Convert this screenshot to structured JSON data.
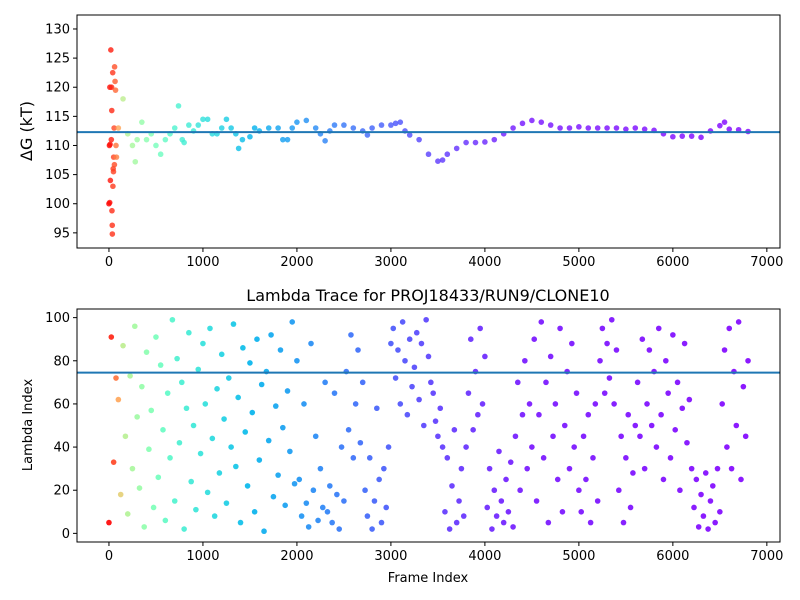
{
  "chart_data": [
    {
      "type": "scatter",
      "title": "",
      "xlabel": "",
      "ylabel": "ΔG (kT)",
      "xlim": [
        -340,
        7140
      ],
      "ylim": [
        92.4,
        132.4
      ],
      "xticks": [
        0,
        1000,
        2000,
        3000,
        4000,
        5000,
        6000,
        7000
      ],
      "yticks": [
        95,
        100,
        105,
        110,
        115,
        120,
        125,
        130
      ],
      "colormap": "rainbow (red early → purple late)",
      "hline": {
        "y": 112.3,
        "color": "#1f77b4"
      },
      "points": [
        [
          0,
          100
        ],
        [
          5,
          110
        ],
        [
          8,
          100.2
        ],
        [
          10,
          120
        ],
        [
          12,
          110.2
        ],
        [
          15,
          104
        ],
        [
          20,
          126.4
        ],
        [
          25,
          111
        ],
        [
          28,
          120
        ],
        [
          30,
          116
        ],
        [
          32,
          98.8
        ],
        [
          35,
          96.3
        ],
        [
          36,
          94.8
        ],
        [
          40,
          122.5
        ],
        [
          42,
          103
        ],
        [
          45,
          106
        ],
        [
          48,
          105.5
        ],
        [
          50,
          108
        ],
        [
          55,
          113
        ],
        [
          58,
          106.7
        ],
        [
          60,
          123.5
        ],
        [
          65,
          121
        ],
        [
          70,
          119.5
        ],
        [
          75,
          110
        ],
        [
          80,
          108
        ],
        [
          100,
          113
        ],
        [
          150,
          118
        ],
        [
          200,
          112
        ],
        [
          250,
          110
        ],
        [
          280,
          107.2
        ],
        [
          300,
          111
        ],
        [
          350,
          114
        ],
        [
          400,
          111
        ],
        [
          450,
          112
        ],
        [
          500,
          110
        ],
        [
          550,
          108.5
        ],
        [
          600,
          111
        ],
        [
          650,
          112
        ],
        [
          700,
          113
        ],
        [
          740,
          116.8
        ],
        [
          780,
          111
        ],
        [
          800,
          110.5
        ],
        [
          850,
          113.5
        ],
        [
          900,
          112.5
        ],
        [
          950,
          113.5
        ],
        [
          1000,
          114.5
        ],
        [
          1050,
          114.5
        ],
        [
          1100,
          112
        ],
        [
          1150,
          112
        ],
        [
          1200,
          113
        ],
        [
          1250,
          114.5
        ],
        [
          1300,
          113
        ],
        [
          1350,
          112
        ],
        [
          1380,
          109.5
        ],
        [
          1420,
          111
        ],
        [
          1500,
          111.5
        ],
        [
          1550,
          113
        ],
        [
          1600,
          112.5
        ],
        [
          1700,
          113
        ],
        [
          1800,
          113
        ],
        [
          1850,
          111
        ],
        [
          1900,
          111
        ],
        [
          1950,
          113
        ],
        [
          2000,
          114
        ],
        [
          2100,
          114.3
        ],
        [
          2200,
          113
        ],
        [
          2250,
          112
        ],
        [
          2300,
          110.8
        ],
        [
          2350,
          112.5
        ],
        [
          2400,
          113.5
        ],
        [
          2500,
          113.5
        ],
        [
          2600,
          113
        ],
        [
          2700,
          112.5
        ],
        [
          2750,
          111.8
        ],
        [
          2800,
          113
        ],
        [
          2900,
          113.5
        ],
        [
          3000,
          113.5
        ],
        [
          3050,
          113.8
        ],
        [
          3100,
          114
        ],
        [
          3150,
          112.5
        ],
        [
          3200,
          111.8
        ],
        [
          3300,
          111
        ],
        [
          3400,
          108.5
        ],
        [
          3500,
          107.3
        ],
        [
          3550,
          107.5
        ],
        [
          3600,
          108.5
        ],
        [
          3700,
          109.5
        ],
        [
          3800,
          110.5
        ],
        [
          3900,
          110.5
        ],
        [
          4000,
          110.6
        ],
        [
          4100,
          111
        ],
        [
          4200,
          112
        ],
        [
          4300,
          113
        ],
        [
          4400,
          113.8
        ],
        [
          4500,
          114.3
        ],
        [
          4600,
          114
        ],
        [
          4700,
          113.5
        ],
        [
          4800,
          113
        ],
        [
          4900,
          113
        ],
        [
          5000,
          113.2
        ],
        [
          5100,
          113
        ],
        [
          5200,
          113
        ],
        [
          5300,
          113
        ],
        [
          5400,
          113
        ],
        [
          5500,
          112.8
        ],
        [
          5600,
          113
        ],
        [
          5700,
          112.8
        ],
        [
          5800,
          112.6
        ],
        [
          5900,
          112
        ],
        [
          6000,
          111.5
        ],
        [
          6100,
          111.6
        ],
        [
          6200,
          111.6
        ],
        [
          6300,
          111.4
        ],
        [
          6400,
          112.5
        ],
        [
          6500,
          113.4
        ],
        [
          6550,
          114
        ],
        [
          6600,
          112.8
        ],
        [
          6700,
          112.7
        ],
        [
          6800,
          112.4
        ]
      ]
    },
    {
      "type": "scatter",
      "title": "Lambda Trace for PROJ18433/RUN9/CLONE10",
      "xlabel": "Frame Index",
      "ylabel": "Lambda Index",
      "xlim": [
        -340,
        7140
      ],
      "ylim": [
        -4,
        104
      ],
      "xticks": [
        0,
        1000,
        2000,
        3000,
        4000,
        5000,
        6000,
        7000
      ],
      "yticks": [
        0,
        20,
        40,
        60,
        80,
        100
      ],
      "colormap": "rainbow (red early → purple late)",
      "hline": {
        "y": 74.5,
        "color": "#1f77b4"
      },
      "x_start": 0,
      "x_step": 25,
      "values": [
        5,
        91,
        33,
        72,
        62,
        18,
        87,
        45,
        9,
        73,
        30,
        96,
        54,
        21,
        68,
        3,
        84,
        39,
        57,
        12,
        91,
        26,
        78,
        48,
        6,
        65,
        35,
        99,
        15,
        81,
        42,
        70,
        2,
        58,
        93,
        24,
        50,
        11,
        76,
        37,
        88,
        60,
        19,
        95,
        44,
        8,
        67,
        28,
        83,
        53,
        14,
        72,
        40,
        97,
        31,
        63,
        5,
        86,
        47,
        22,
        79,
        56,
        10,
        90,
        34,
        69,
        1,
        75,
        43,
        92,
        17,
        59,
        27,
        85,
        49,
        13,
        66,
        38,
        98,
        23,
        80,
        25,
        8,
        60,
        14,
        3,
        88,
        20,
        45,
        6,
        30,
        12,
        70,
        10,
        22,
        5,
        65,
        18,
        2,
        40,
        15,
        75,
        48,
        92,
        35,
        60,
        85,
        42,
        70,
        20,
        8,
        35,
        2,
        15,
        58,
        25,
        5,
        30,
        12,
        40,
        88,
        95,
        72,
        85,
        60,
        98,
        80,
        55,
        90,
        68,
        77,
        93,
        62,
        88,
        50,
        99,
        82,
        70,
        65,
        52,
        45,
        58,
        40,
        10,
        35,
        2,
        22,
        48,
        5,
        15,
        30,
        8,
        40,
        65,
        90,
        48,
        75,
        55,
        95,
        60,
        82,
        12,
        30,
        2,
        20,
        8,
        38,
        15,
        5,
        25,
        10,
        33,
        3,
        45,
        70,
        20,
        55,
        80,
        30,
        60,
        40,
        90,
        15,
        55,
        98,
        35,
        70,
        5,
        82,
        45,
        60,
        25,
        95,
        10,
        50,
        75,
        30,
        88,
        40,
        65,
        20,
        10,
        45,
        25,
        55,
        5,
        35,
        60,
        15,
        80,
        95,
        65,
        88,
        72,
        99,
        60,
        85,
        20,
        45,
        5,
        35,
        55,
        12,
        28,
        50,
        70,
        45,
        90,
        30,
        60,
        85,
        50,
        75,
        40,
        95,
        55,
        25,
        80,
        65,
        35,
        92,
        48,
        70,
        20,
        58,
        88,
        42,
        62,
        30,
        12,
        25,
        3,
        18,
        8,
        28,
        2,
        15,
        22,
        5,
        30,
        10,
        60,
        85,
        40,
        95,
        30,
        75,
        50,
        98,
        25,
        68,
        45,
        80
      ]
    }
  ]
}
